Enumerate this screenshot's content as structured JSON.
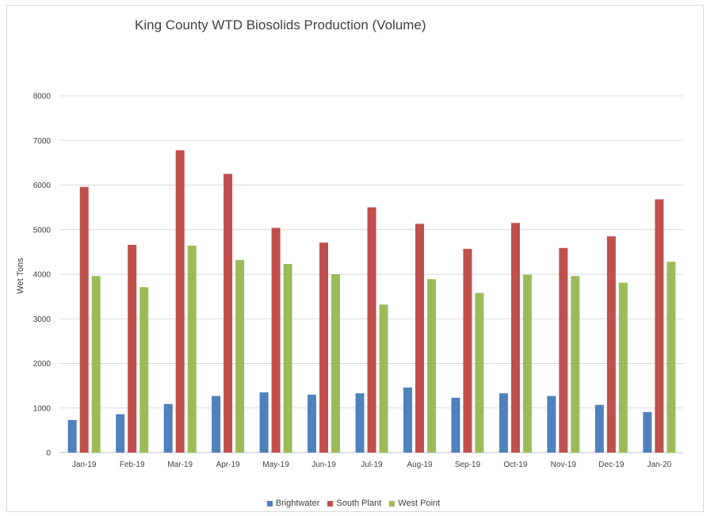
{
  "chart_data": {
    "type": "bar",
    "title": "King County WTD Biosolids Production (Volume)",
    "xlabel": "",
    "ylabel": "Wet Tons",
    "ylim": [
      0,
      8000
    ],
    "yticks": [
      0,
      1000,
      2000,
      3000,
      4000,
      5000,
      6000,
      7000,
      8000
    ],
    "grid": true,
    "legend_position": "bottom",
    "categories": [
      "Jan-19",
      "Feb-19",
      "Mar-19",
      "Apr-19",
      "May-19",
      "Jun-19",
      "Jul-19",
      "Aug-19",
      "Sep-19",
      "Oct-19",
      "Nov-19",
      "Dec-19",
      "Jan-20"
    ],
    "series": [
      {
        "name": "Brightwater",
        "color": "#4f81bd",
        "values": [
          730,
          860,
          1090,
          1270,
          1350,
          1300,
          1330,
          1460,
          1230,
          1330,
          1270,
          1070,
          910
        ]
      },
      {
        "name": "South Plant",
        "color": "#c0504d",
        "values": [
          5960,
          4660,
          6780,
          6250,
          5040,
          4710,
          5500,
          5130,
          4570,
          5150,
          4590,
          4850,
          5680
        ]
      },
      {
        "name": "West Point",
        "color": "#9bbb59",
        "values": [
          3960,
          3710,
          4640,
          4320,
          4230,
          4000,
          3320,
          3890,
          3580,
          3990,
          3960,
          3810,
          4280
        ]
      }
    ]
  }
}
